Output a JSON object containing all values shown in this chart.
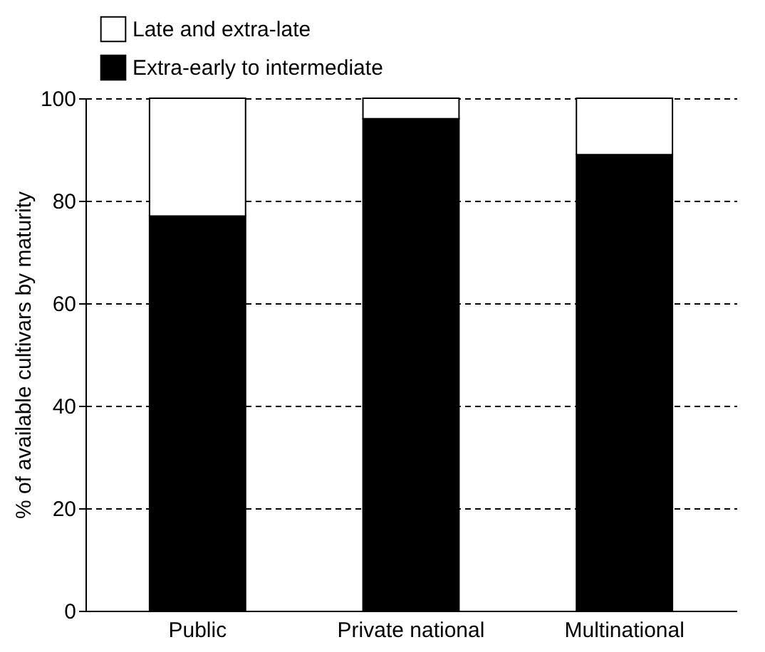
{
  "chart_data": {
    "type": "bar",
    "stacked": true,
    "categories": [
      "Public",
      "Private national",
      "Multinational"
    ],
    "ylabel": "% of available cultivars by maturity",
    "ylim": [
      0,
      100
    ],
    "yticks": [
      0,
      20,
      40,
      60,
      80,
      100
    ],
    "grid": "y",
    "legend": "top left",
    "series": [
      {
        "name": "Extra-early to intermediate",
        "color": "#000000",
        "values": [
          77,
          96,
          89
        ]
      },
      {
        "name": "Late and extra-late",
        "color": "#ffffff",
        "values": [
          23,
          4,
          11
        ]
      }
    ]
  }
}
